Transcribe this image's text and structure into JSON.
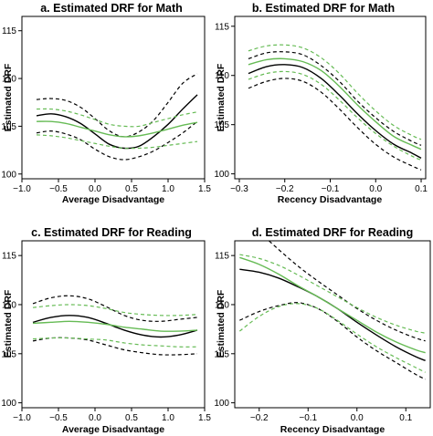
{
  "chart_data": [
    {
      "type": "line",
      "title": "a. Estimated DRF for Math",
      "xlabel": "Average Disadvantage",
      "ylabel": "Estimated DRF",
      "xlim": [
        -1.0,
        1.5
      ],
      "ylim": [
        99.5,
        116.5
      ],
      "x_ticks": [
        "−1.0",
        "−0.5",
        "0.0",
        "0.5",
        "1.0",
        "1.5"
      ],
      "y_ticks": [
        "100",
        "105",
        "110",
        "115"
      ],
      "x_tick_values": [
        -1.0,
        -0.5,
        0.0,
        0.5,
        1.0,
        1.5
      ],
      "y_tick_values": [
        100,
        105,
        110,
        115
      ],
      "x": [
        -0.8,
        -0.6,
        -0.4,
        -0.2,
        0.0,
        0.2,
        0.4,
        0.6,
        0.8,
        1.0,
        1.2,
        1.4
      ],
      "series": [
        {
          "color": "#000000",
          "style": "solid",
          "values": [
            106.1,
            106.3,
            106.0,
            105.3,
            104.2,
            103.1,
            102.7,
            102.9,
            103.9,
            105.2,
            106.8,
            108.3
          ]
        },
        {
          "color": "#000000",
          "style": "dashed",
          "values": [
            107.8,
            107.9,
            107.7,
            107.0,
            105.8,
            104.5,
            103.9,
            104.4,
            105.6,
            107.5,
            109.5,
            110.5
          ]
        },
        {
          "color": "#000000",
          "style": "dashed",
          "values": [
            104.3,
            104.5,
            104.2,
            103.6,
            102.6,
            101.8,
            101.5,
            101.8,
            102.4,
            103.3,
            104.3,
            105.5
          ]
        },
        {
          "color": "#66bb55",
          "style": "solid",
          "values": [
            105.5,
            105.5,
            105.3,
            104.9,
            104.5,
            104.1,
            103.9,
            104.0,
            104.3,
            104.7,
            105.1,
            105.4
          ]
        },
        {
          "color": "#66bb55",
          "style": "dashed",
          "values": [
            106.8,
            106.8,
            106.6,
            106.2,
            105.7,
            105.2,
            105.0,
            105.0,
            105.4,
            105.8,
            106.2,
            106.5
          ]
        },
        {
          "color": "#66bb55",
          "style": "dashed",
          "values": [
            104.1,
            104.0,
            103.8,
            103.5,
            103.2,
            102.9,
            102.7,
            102.7,
            102.8,
            103.0,
            103.2,
            103.4
          ]
        }
      ]
    },
    {
      "type": "line",
      "title": "b. Estimated DRF for Math",
      "xlabel": "Recency Disadvantage",
      "ylabel": "Estimated DRF",
      "xlim": [
        -0.31,
        0.11
      ],
      "ylim": [
        99.5,
        116.0
      ],
      "x_ticks": [
        "−0.3",
        "−0.2",
        "−0.1",
        "0.0",
        "0.1"
      ],
      "y_ticks": [
        "100",
        "105",
        "110",
        "115"
      ],
      "x_tick_values": [
        -0.3,
        -0.2,
        -0.1,
        0.0,
        0.1
      ],
      "y_tick_values": [
        100,
        105,
        110,
        115
      ],
      "x": [
        -0.28,
        -0.24,
        -0.2,
        -0.16,
        -0.12,
        -0.08,
        -0.04,
        0.0,
        0.04,
        0.08,
        0.1
      ],
      "series": [
        {
          "color": "#000000",
          "style": "solid",
          "values": [
            110.2,
            110.9,
            111.1,
            110.8,
            109.7,
            108.0,
            106.1,
            104.4,
            103.0,
            102.1,
            101.6
          ]
        },
        {
          "color": "#000000",
          "style": "dashed",
          "values": [
            111.7,
            112.3,
            112.4,
            112.1,
            111.0,
            109.4,
            107.4,
            105.7,
            104.3,
            103.3,
            102.9
          ]
        },
        {
          "color": "#000000",
          "style": "dashed",
          "values": [
            108.7,
            109.4,
            109.7,
            109.4,
            108.3,
            106.6,
            104.7,
            103.0,
            101.7,
            100.8,
            100.4
          ]
        },
        {
          "color": "#66bb55",
          "style": "solid",
          "values": [
            111.1,
            111.6,
            111.7,
            111.4,
            110.5,
            108.9,
            107.0,
            105.3,
            103.8,
            102.9,
            102.5
          ]
        },
        {
          "color": "#66bb55",
          "style": "dashed",
          "values": [
            112.5,
            113.0,
            113.1,
            112.8,
            111.8,
            110.2,
            108.2,
            106.4,
            104.9,
            103.9,
            103.5
          ]
        },
        {
          "color": "#66bb55",
          "style": "dashed",
          "values": [
            109.6,
            110.2,
            110.4,
            110.1,
            109.1,
            107.5,
            105.7,
            104.1,
            102.8,
            101.8,
            101.4
          ]
        }
      ]
    },
    {
      "type": "line",
      "title": "c. Estimated DRF for Reading",
      "xlabel": "Average Disadvantage",
      "ylabel": "Estimated DRF",
      "xlim": [
        -1.0,
        1.5
      ],
      "ylim": [
        99.5,
        116.5
      ],
      "x_ticks": [
        "−1.0",
        "−0.5",
        "0.0",
        "0.5",
        "1.0",
        "1.5"
      ],
      "y_ticks": [
        "100",
        "105",
        "110",
        "115"
      ],
      "x_tick_values": [
        -1.0,
        -0.5,
        0.0,
        0.5,
        1.0,
        1.5
      ],
      "y_tick_values": [
        100,
        105,
        110,
        115
      ],
      "x": [
        -0.85,
        -0.6,
        -0.35,
        -0.1,
        0.15,
        0.4,
        0.65,
        0.9,
        1.15,
        1.4
      ],
      "series": [
        {
          "color": "#000000",
          "style": "solid",
          "values": [
            108.2,
            108.7,
            108.9,
            108.7,
            108.1,
            107.4,
            106.9,
            106.7,
            106.9,
            107.4
          ]
        },
        {
          "color": "#000000",
          "style": "dashed",
          "values": [
            110.1,
            110.7,
            110.9,
            110.6,
            109.8,
            108.9,
            108.4,
            108.3,
            108.5,
            108.7
          ]
        },
        {
          "color": "#000000",
          "style": "dashed",
          "values": [
            106.3,
            106.6,
            106.6,
            106.4,
            105.9,
            105.4,
            105.1,
            104.9,
            104.9,
            105.0
          ]
        },
        {
          "color": "#66bb55",
          "style": "solid",
          "values": [
            108.1,
            108.2,
            108.3,
            108.2,
            108.0,
            107.7,
            107.5,
            107.3,
            107.3,
            107.4
          ]
        },
        {
          "color": "#66bb55",
          "style": "dashed",
          "values": [
            109.7,
            109.9,
            110.0,
            109.9,
            109.6,
            109.2,
            109.0,
            108.9,
            108.9,
            109.0
          ]
        },
        {
          "color": "#66bb55",
          "style": "dashed",
          "values": [
            106.5,
            106.6,
            106.6,
            106.5,
            106.4,
            106.1,
            105.9,
            105.8,
            105.7,
            105.7
          ]
        }
      ]
    },
    {
      "type": "line",
      "title": "d. Estimated DRF for Reading",
      "xlabel": "Recency Disadvantage",
      "ylabel": "Estimated DRF",
      "xlim": [
        -0.25,
        0.15
      ],
      "ylim": [
        99.5,
        116.5
      ],
      "x_ticks": [
        "−0.2",
        "−0.1",
        "0.0",
        "0.1"
      ],
      "y_ticks": [
        "100",
        "105",
        "110",
        "115"
      ],
      "x_tick_values": [
        -0.2,
        -0.1,
        0.0,
        0.1
      ],
      "y_tick_values": [
        100,
        105,
        110,
        115
      ],
      "x": [
        -0.24,
        -0.2,
        -0.16,
        -0.12,
        -0.08,
        -0.04,
        0.0,
        0.04,
        0.08,
        0.12,
        0.14
      ],
      "series": [
        {
          "color": "#000000",
          "style": "solid",
          "values": [
            113.6,
            113.3,
            112.7,
            111.8,
            110.8,
            109.6,
            108.2,
            106.9,
            105.7,
            104.7,
            104.3
          ]
        },
        {
          "color": "#000000",
          "style": "dashed",
          "values": [
            119.0,
            117.4,
            115.6,
            113.9,
            112.4,
            111.0,
            109.6,
            108.4,
            107.4,
            106.6,
            106.3
          ]
        },
        {
          "color": "#000000",
          "style": "dashed",
          "values": [
            108.4,
            109.3,
            109.9,
            110.2,
            109.6,
            108.3,
            106.7,
            105.3,
            104.1,
            102.9,
            102.4
          ]
        },
        {
          "color": "#66bb55",
          "style": "solid",
          "values": [
            114.8,
            114.1,
            113.1,
            111.9,
            110.8,
            109.6,
            108.4,
            107.2,
            106.2,
            105.4,
            105.1
          ]
        },
        {
          "color": "#66bb55",
          "style": "dashed",
          "values": [
            115.1,
            114.7,
            114.0,
            113.0,
            111.9,
            110.8,
            109.7,
            108.7,
            107.9,
            107.3,
            107.1
          ]
        },
        {
          "color": "#66bb55",
          "style": "dashed",
          "values": [
            107.3,
            108.8,
            109.8,
            110.1,
            109.6,
            108.4,
            107.0,
            105.7,
            104.6,
            103.6,
            103.1
          ]
        }
      ]
    }
  ]
}
